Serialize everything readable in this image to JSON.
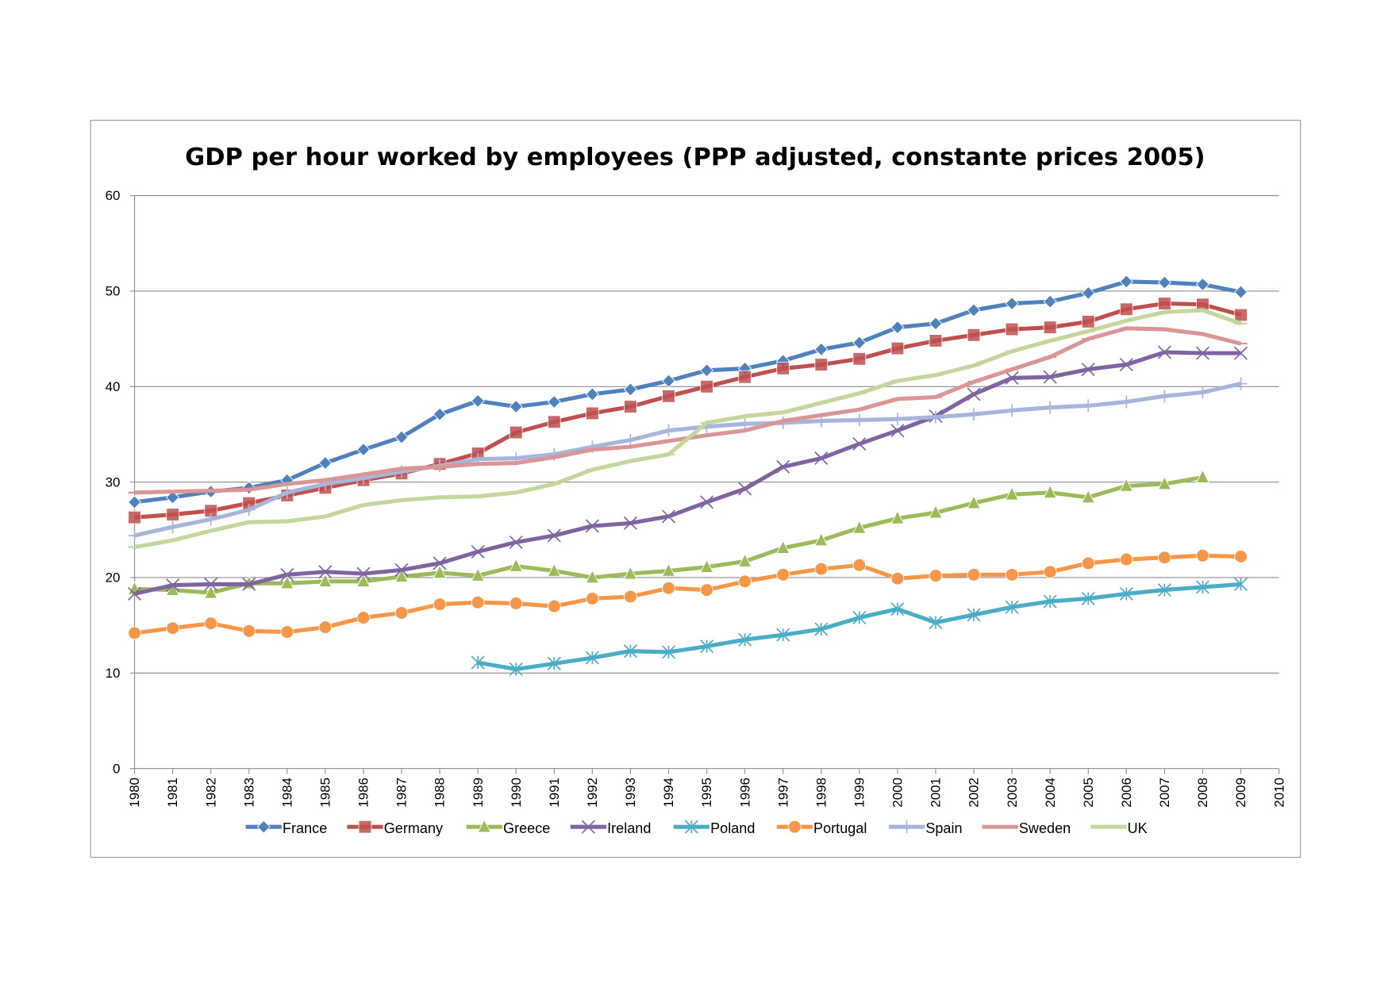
{
  "chart_data": {
    "type": "line",
    "title": "GDP per hour worked by employees (PPP adjusted, constante prices 2005)",
    "xlabel": "",
    "ylabel": "",
    "ylim": [
      0,
      60
    ],
    "yticks": [
      0,
      10,
      20,
      30,
      40,
      50,
      60
    ],
    "xlim": [
      1980,
      2010
    ],
    "x": [
      1980,
      1981,
      1982,
      1983,
      1984,
      1985,
      1986,
      1987,
      1988,
      1989,
      1990,
      1991,
      1992,
      1993,
      1994,
      1995,
      1996,
      1997,
      1998,
      1999,
      2000,
      2001,
      2002,
      2003,
      2004,
      2005,
      2006,
      2007,
      2008,
      2009
    ],
    "xtick_labels": [
      "1980",
      "1981",
      "1982",
      "1983",
      "1984",
      "1985",
      "1986",
      "1987",
      "1988",
      "1989",
      "1990",
      "1991",
      "1992",
      "1993",
      "1994",
      "1995",
      "1996",
      "1997",
      "1998",
      "1999",
      "2000",
      "2001",
      "2002",
      "2003",
      "2004",
      "2005",
      "2006",
      "2007",
      "2008",
      "2009",
      "2010"
    ],
    "grid": "horizontal",
    "legend_position": "bottom",
    "series": [
      {
        "name": "France",
        "color": "#4f81bd",
        "marker": "diamond",
        "values": [
          27.9,
          28.4,
          29.0,
          29.4,
          30.2,
          32.0,
          33.4,
          34.7,
          37.1,
          38.5,
          37.9,
          38.4,
          39.2,
          39.7,
          40.6,
          41.7,
          41.9,
          42.7,
          43.9,
          44.6,
          46.2,
          46.6,
          48.0,
          48.7,
          48.9,
          49.8,
          51.0,
          50.9,
          50.7,
          49.9
        ]
      },
      {
        "name": "Germany",
        "color": "#c0504d",
        "marker": "square",
        "values": [
          26.3,
          26.6,
          27.0,
          27.8,
          28.6,
          29.4,
          30.2,
          30.9,
          31.9,
          33.0,
          35.2,
          36.3,
          37.2,
          37.9,
          39.0,
          40.0,
          41.0,
          41.9,
          42.3,
          42.9,
          44.0,
          44.8,
          45.4,
          46.0,
          46.2,
          46.8,
          48.1,
          48.7,
          48.6,
          47.5
        ]
      },
      {
        "name": "Greece",
        "color": "#9bbb59",
        "marker": "triangle",
        "values": [
          18.8,
          18.7,
          18.4,
          19.4,
          19.4,
          19.6,
          19.6,
          20.1,
          20.5,
          20.2,
          21.2,
          20.7,
          20.0,
          20.4,
          20.7,
          21.1,
          21.7,
          23.1,
          23.9,
          25.2,
          26.2,
          26.8,
          27.8,
          28.7,
          28.9,
          28.4,
          29.6,
          29.8,
          30.5,
          null
        ]
      },
      {
        "name": "Ireland",
        "color": "#8064a2",
        "marker": "x",
        "values": [
          18.3,
          19.2,
          19.3,
          19.3,
          20.3,
          20.6,
          20.4,
          20.8,
          21.5,
          22.7,
          23.7,
          24.4,
          25.4,
          25.7,
          26.4,
          27.9,
          29.3,
          31.6,
          32.5,
          34.0,
          35.4,
          36.9,
          39.2,
          40.9,
          41.0,
          41.8,
          42.3,
          43.6,
          43.5,
          43.5
        ]
      },
      {
        "name": "Poland",
        "color": "#4bacc6",
        "marker": "star",
        "values": [
          null,
          null,
          null,
          null,
          null,
          null,
          null,
          null,
          null,
          11.1,
          10.4,
          11.0,
          11.6,
          12.3,
          12.2,
          12.8,
          13.5,
          14.0,
          14.6,
          15.8,
          16.7,
          15.3,
          16.1,
          16.9,
          17.5,
          17.8,
          18.3,
          18.7,
          19.0,
          19.3
        ]
      },
      {
        "name": "Portugal",
        "color": "#f79646",
        "marker": "circle",
        "values": [
          14.2,
          14.7,
          15.2,
          14.4,
          14.3,
          14.8,
          15.8,
          16.3,
          17.2,
          17.4,
          17.3,
          17.0,
          17.8,
          18.0,
          18.9,
          18.7,
          19.6,
          20.3,
          20.9,
          21.3,
          19.9,
          20.2,
          20.3,
          20.3,
          20.6,
          21.5,
          21.9,
          22.1,
          22.3,
          22.2
        ]
      },
      {
        "name": "Spain",
        "color": "#a5b5dc",
        "marker": "plus",
        "values": [
          24.4,
          25.3,
          26.1,
          27.1,
          28.9,
          29.8,
          30.4,
          31.1,
          31.7,
          32.4,
          32.5,
          32.9,
          33.7,
          34.4,
          35.4,
          35.8,
          36.1,
          36.2,
          36.4,
          36.5,
          36.6,
          36.8,
          37.1,
          37.5,
          37.8,
          38.0,
          38.4,
          39.0,
          39.4,
          40.3
        ]
      },
      {
        "name": "Sweden",
        "color": "#d99694",
        "marker": "dash",
        "values": [
          28.9,
          29.0,
          29.1,
          29.2,
          29.8,
          30.2,
          30.8,
          31.4,
          31.6,
          31.9,
          32.0,
          32.6,
          33.4,
          33.7,
          34.3,
          34.9,
          35.4,
          36.4,
          37.0,
          37.6,
          38.7,
          38.9,
          40.5,
          41.8,
          43.1,
          45.0,
          46.1,
          46.0,
          45.5,
          44.5
        ]
      },
      {
        "name": "UK",
        "color": "#c3d69b",
        "marker": "dash",
        "values": [
          23.2,
          23.9,
          24.9,
          25.8,
          25.9,
          26.4,
          27.6,
          28.1,
          28.4,
          28.5,
          28.9,
          29.8,
          31.3,
          32.2,
          32.9,
          36.2,
          36.9,
          37.3,
          38.3,
          39.3,
          40.6,
          41.2,
          42.2,
          43.7,
          44.8,
          45.8,
          46.9,
          47.8,
          48.0,
          46.6
        ]
      }
    ]
  }
}
